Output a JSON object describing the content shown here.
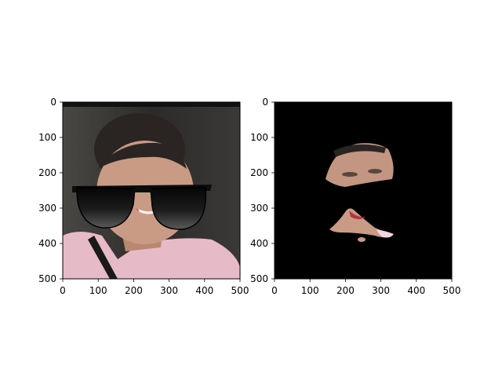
{
  "chart_data": [
    {
      "type": "image",
      "xlim": [
        0,
        500
      ],
      "ylim": [
        500,
        0
      ],
      "xticks": [
        0,
        100,
        200,
        300,
        400,
        500
      ],
      "yticks": [
        0,
        100,
        200,
        300,
        400,
        500
      ],
      "xtick_labels": [
        "0",
        "100",
        "200",
        "300",
        "400",
        "500"
      ],
      "ytick_labels": [
        "0",
        "100",
        "200",
        "300",
        "400",
        "500"
      ],
      "content": "face-photo-with-sunglasses-overlay"
    },
    {
      "type": "image",
      "xlim": [
        0,
        500
      ],
      "ylim": [
        500,
        0
      ],
      "xticks": [
        0,
        100,
        200,
        300,
        400,
        500
      ],
      "yticks": [
        0,
        100,
        200,
        300,
        400,
        500
      ],
      "xtick_labels": [
        "0",
        "100",
        "200",
        "300",
        "400",
        "500"
      ],
      "ytick_labels": [
        "0",
        "100",
        "200",
        "300",
        "400",
        "500"
      ],
      "content": "masked-face-regions-on-black"
    }
  ],
  "colors": {
    "skin": "#c99a84",
    "hair": "#2a2522",
    "shirt": "#e8bcc8",
    "background_left": "#3a3a38",
    "mask_background": "#000000",
    "lens": "#111111"
  }
}
